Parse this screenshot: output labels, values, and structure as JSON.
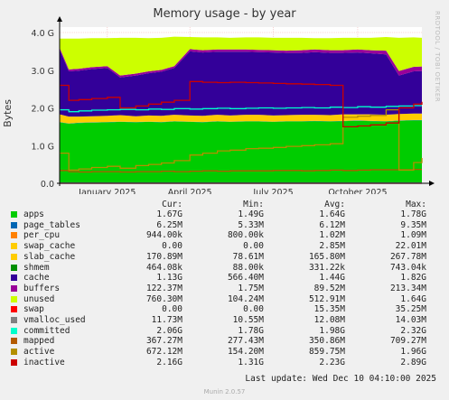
{
  "chart_data": {
    "type": "area",
    "title": "Memory usage - by year",
    "ylabel": "Bytes",
    "side_note": "RRDTOOL / TOBI OETIKER",
    "ylim": [
      0,
      4.0
    ],
    "y_unit": "G",
    "y_ticks": [
      "0.0",
      "1.0 G",
      "2.0 G",
      "3.0 G",
      "4.0 G"
    ],
    "x_range": [
      "2024-11-10",
      "2025-12-10"
    ],
    "x_ticks": [
      {
        "label": "January 2025",
        "date": "2025-01-01"
      },
      {
        "label": "April 2025",
        "date": "2025-04-01"
      },
      {
        "label": "July 2025",
        "date": "2025-07-01"
      },
      {
        "label": "October 2025",
        "date": "2025-10-01"
      }
    ],
    "grid": true,
    "x": [
      "2024-11-10",
      "2024-11-20",
      "2024-12-01",
      "2024-12-15",
      "2025-01-01",
      "2025-01-15",
      "2025-02-01",
      "2025-02-15",
      "2025-03-01",
      "2025-03-15",
      "2025-04-01",
      "2025-04-15",
      "2025-05-01",
      "2025-05-15",
      "2025-06-01",
      "2025-06-15",
      "2025-07-01",
      "2025-07-15",
      "2025-08-01",
      "2025-08-15",
      "2025-09-01",
      "2025-09-15",
      "2025-10-01",
      "2025-10-15",
      "2025-11-01",
      "2025-11-15",
      "2025-12-01",
      "2025-12-10"
    ],
    "stacked_series": [
      {
        "name": "apps",
        "color": "#00cc00",
        "values": [
          1.62,
          1.58,
          1.6,
          1.61,
          1.62,
          1.63,
          1.62,
          1.63,
          1.62,
          1.64,
          1.63,
          1.62,
          1.64,
          1.63,
          1.64,
          1.64,
          1.63,
          1.64,
          1.64,
          1.65,
          1.64,
          1.65,
          1.66,
          1.65,
          1.64,
          1.66,
          1.67,
          1.67
        ]
      },
      {
        "name": "page_tables",
        "color": "#0066b3",
        "values": [
          0.006,
          0.006,
          0.006,
          0.006,
          0.006,
          0.006,
          0.006,
          0.006,
          0.006,
          0.006,
          0.006,
          0.006,
          0.006,
          0.006,
          0.006,
          0.006,
          0.006,
          0.006,
          0.006,
          0.006,
          0.006,
          0.006,
          0.006,
          0.006,
          0.006,
          0.006,
          0.006,
          0.006
        ]
      },
      {
        "name": "per_cpu",
        "color": "#ff8000",
        "values": [
          0.001,
          0.001,
          0.001,
          0.001,
          0.001,
          0.001,
          0.001,
          0.001,
          0.001,
          0.001,
          0.001,
          0.001,
          0.001,
          0.001,
          0.001,
          0.001,
          0.001,
          0.001,
          0.001,
          0.001,
          0.001,
          0.001,
          0.001,
          0.001,
          0.001,
          0.001,
          0.001,
          0.001
        ]
      },
      {
        "name": "swap_cache",
        "color": "#ffcc00",
        "values": [
          0.002,
          0.002,
          0.002,
          0.002,
          0.002,
          0.002,
          0.002,
          0.002,
          0.002,
          0.002,
          0.002,
          0.002,
          0.002,
          0.002,
          0.002,
          0.002,
          0.002,
          0.002,
          0.002,
          0.002,
          0.002,
          0.002,
          0.002,
          0.002,
          0.002,
          0.002,
          0.002,
          0.002
        ]
      },
      {
        "name": "slab_cache",
        "color": "#ffcc00",
        "values": [
          0.2,
          0.18,
          0.16,
          0.16,
          0.16,
          0.17,
          0.15,
          0.16,
          0.16,
          0.17,
          0.16,
          0.16,
          0.17,
          0.16,
          0.17,
          0.17,
          0.16,
          0.16,
          0.17,
          0.16,
          0.16,
          0.17,
          0.16,
          0.17,
          0.17,
          0.17,
          0.17,
          0.17
        ]
      },
      {
        "name": "shmem",
        "color": "#330099",
        "values": [
          0.0005,
          0.0005,
          0.0005,
          0.0005,
          0.0005,
          0.0005,
          0.0005,
          0.0005,
          0.0005,
          0.0005,
          0.0005,
          0.0005,
          0.0005,
          0.0005,
          0.0005,
          0.0005,
          0.0005,
          0.0005,
          0.0005,
          0.0005,
          0.0005,
          0.0005,
          0.0005,
          0.0005,
          0.0005,
          0.0005,
          0.0005,
          0.0005
        ]
      },
      {
        "name": "cache",
        "color": "#330099",
        "values": [
          1.72,
          1.2,
          1.22,
          1.25,
          1.27,
          1.0,
          1.08,
          1.12,
          1.17,
          1.24,
          1.7,
          1.68,
          1.67,
          1.69,
          1.67,
          1.66,
          1.67,
          1.65,
          1.64,
          1.66,
          1.65,
          1.63,
          1.64,
          1.62,
          1.6,
          1.02,
          1.12,
          1.13
        ]
      },
      {
        "name": "buffers",
        "color": "#990099",
        "values": [
          0.05,
          0.05,
          0.05,
          0.05,
          0.05,
          0.05,
          0.05,
          0.05,
          0.05,
          0.05,
          0.06,
          0.06,
          0.06,
          0.06,
          0.06,
          0.06,
          0.06,
          0.06,
          0.07,
          0.07,
          0.07,
          0.07,
          0.08,
          0.08,
          0.1,
          0.12,
          0.12,
          0.12
        ]
      },
      {
        "name": "unused",
        "color": "#ccff00",
        "values": [
          0.24,
          0.82,
          0.8,
          0.77,
          0.74,
          1.0,
          0.95,
          0.88,
          0.85,
          0.78,
          0.32,
          0.34,
          0.32,
          0.31,
          0.32,
          0.33,
          0.33,
          0.34,
          0.33,
          0.3,
          0.32,
          0.33,
          0.31,
          0.33,
          0.36,
          0.88,
          0.78,
          0.76
        ]
      }
    ],
    "line_series": [
      {
        "name": "swap",
        "color": "#ff0000",
        "values": [
          0,
          0,
          0,
          0,
          0,
          0,
          0,
          0,
          0,
          0,
          0,
          0,
          0,
          0,
          0,
          0,
          0,
          0,
          0,
          0,
          0,
          0,
          0,
          0,
          0,
          0,
          0,
          0
        ]
      },
      {
        "name": "vmalloc_used",
        "color": "#808080",
        "values": [
          0.012,
          0.012,
          0.012,
          0.012,
          0.012,
          0.012,
          0.012,
          0.012,
          0.012,
          0.012,
          0.012,
          0.012,
          0.012,
          0.012,
          0.012,
          0.012,
          0.012,
          0.012,
          0.012,
          0.012,
          0.012,
          0.012,
          0.012,
          0.012,
          0.012,
          0.012,
          0.012,
          0.012
        ]
      },
      {
        "name": "committed",
        "color": "#00ffcc",
        "values": [
          1.95,
          1.9,
          1.92,
          1.94,
          1.95,
          1.96,
          1.95,
          1.97,
          1.96,
          1.98,
          1.97,
          1.98,
          1.99,
          1.98,
          1.99,
          2.0,
          1.99,
          2.0,
          2.01,
          2.0,
          2.02,
          2.01,
          2.03,
          2.02,
          2.04,
          2.05,
          2.06,
          2.06
        ]
      },
      {
        "name": "mapped",
        "color": "#b35a00",
        "values": [
          0.34,
          0.31,
          0.3,
          0.31,
          0.31,
          0.3,
          0.31,
          0.31,
          0.32,
          0.31,
          0.32,
          0.33,
          0.32,
          0.33,
          0.33,
          0.33,
          0.34,
          0.34,
          0.33,
          0.34,
          0.35,
          0.34,
          0.35,
          0.36,
          0.36,
          0.36,
          0.37,
          0.37
        ]
      },
      {
        "name": "active",
        "color": "#b38f00",
        "values": [
          0.8,
          0.35,
          0.38,
          0.42,
          0.45,
          0.4,
          0.47,
          0.5,
          0.54,
          0.6,
          0.75,
          0.8,
          0.86,
          0.88,
          0.92,
          0.93,
          0.95,
          0.98,
          1.0,
          1.02,
          1.05,
          1.75,
          1.78,
          1.8,
          1.95,
          0.35,
          0.55,
          0.67
        ]
      },
      {
        "name": "inactive",
        "color": "#cc0000",
        "values": [
          2.6,
          2.2,
          2.22,
          2.25,
          2.28,
          2.0,
          2.05,
          2.1,
          2.15,
          2.2,
          2.7,
          2.68,
          2.67,
          2.68,
          2.67,
          2.66,
          2.65,
          2.64,
          2.63,
          2.62,
          2.6,
          1.5,
          1.52,
          1.55,
          1.6,
          2.0,
          2.1,
          2.16
        ]
      }
    ],
    "legend_header": {
      "cur": "Cur:",
      "min": "Min:",
      "avg": "Avg:",
      "max": "Max:"
    },
    "legend": [
      {
        "name": "apps",
        "color": "#00cc00",
        "cur": "1.67G",
        "min": "1.49G",
        "avg": "1.64G",
        "max": "1.78G"
      },
      {
        "name": "page_tables",
        "color": "#0066b3",
        "cur": "6.25M",
        "min": "5.33M",
        "avg": "6.12M",
        "max": "9.35M"
      },
      {
        "name": "per_cpu",
        "color": "#ff8000",
        "cur": "944.00k",
        "min": "800.00k",
        "avg": "1.02M",
        "max": "1.09M"
      },
      {
        "name": "swap_cache",
        "color": "#ffcc00",
        "cur": "0.00",
        "min": "0.00",
        "avg": "2.85M",
        "max": "22.01M"
      },
      {
        "name": "slab_cache",
        "color": "#ffcc00",
        "cur": "170.89M",
        "min": "78.61M",
        "avg": "165.80M",
        "max": "267.78M"
      },
      {
        "name": "shmem",
        "color": "#008f00",
        "cur": "464.08k",
        "min": "88.00k",
        "avg": "331.22k",
        "max": "743.04k"
      },
      {
        "name": "cache",
        "color": "#330099",
        "cur": "1.13G",
        "min": "566.40M",
        "avg": "1.44G",
        "max": "1.82G"
      },
      {
        "name": "buffers",
        "color": "#990099",
        "cur": "122.37M",
        "min": "1.75M",
        "avg": "89.52M",
        "max": "213.34M"
      },
      {
        "name": "unused",
        "color": "#ccff00",
        "cur": "760.30M",
        "min": "104.24M",
        "avg": "512.91M",
        "max": "1.64G"
      },
      {
        "name": "swap",
        "color": "#ff0000",
        "cur": "0.00",
        "min": "0.00",
        "avg": "15.35M",
        "max": "35.25M"
      },
      {
        "name": "vmalloc_used",
        "color": "#808080",
        "cur": "11.73M",
        "min": "10.55M",
        "avg": "12.08M",
        "max": "14.03M"
      },
      {
        "name": "committed",
        "color": "#00ffcc",
        "cur": "2.06G",
        "min": "1.78G",
        "avg": "1.98G",
        "max": "2.32G"
      },
      {
        "name": "mapped",
        "color": "#b35a00",
        "cur": "367.27M",
        "min": "277.43M",
        "avg": "350.86M",
        "max": "709.27M"
      },
      {
        "name": "active",
        "color": "#b38f00",
        "cur": "672.12M",
        "min": "154.20M",
        "avg": "859.75M",
        "max": "1.96G"
      },
      {
        "name": "inactive",
        "color": "#cc0000",
        "cur": "2.16G",
        "min": "1.31G",
        "avg": "2.23G",
        "max": "2.89G"
      }
    ],
    "last_update": "Last update: Wed Dec 10 04:10:00 2025",
    "footer": "Munin 2.0.57"
  }
}
